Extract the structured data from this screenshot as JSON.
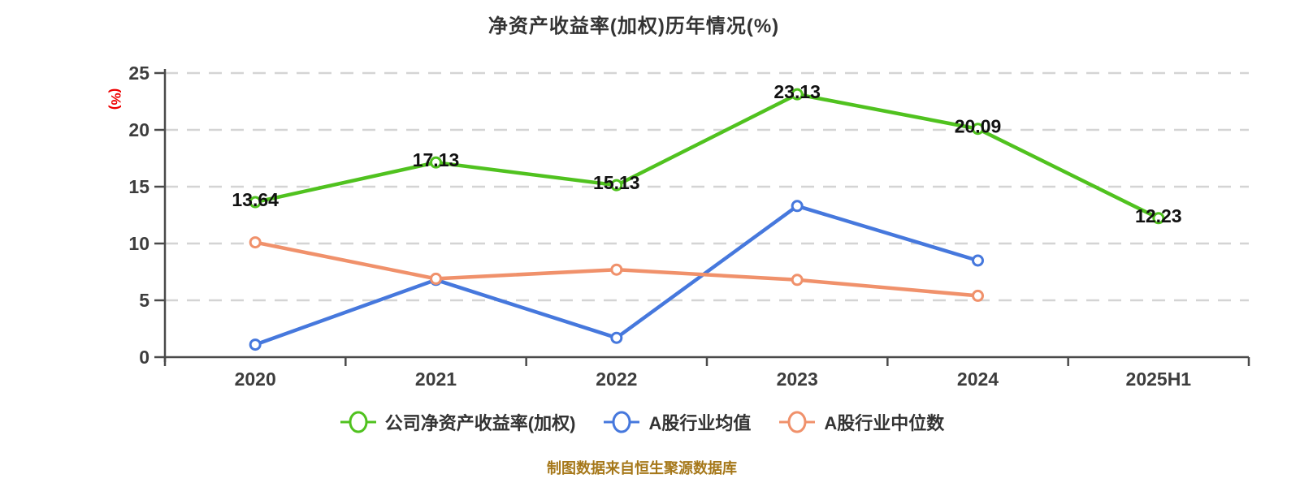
{
  "title": "净资产收益率(加权)历年情况(%)",
  "footer": "制图数据来自恒生聚源数据库",
  "y_axis_unit": "(%)",
  "colors": {
    "company_series": "#50c21f",
    "industry_mean_series": "#4678dd",
    "industry_median_series": "#f0916b",
    "grid": "#d4d4d4",
    "axis": "#4a4a4a",
    "tick_label": "#3d3d3d",
    "data_label": "#111111",
    "title_text": "#333333",
    "legend_text": "#333333",
    "footer_text": "#a6781a",
    "unit_label": "#ee0000",
    "marker_fill": "#ffffff",
    "background": "#ffffff"
  },
  "chart_data": {
    "type": "line",
    "title": "净资产收益率(加权)历年情况(%)",
    "categories": [
      "2020",
      "2021",
      "2022",
      "2023",
      "2024",
      "2025H1"
    ],
    "series": [
      {
        "name": "公司净资产收益率(加权)",
        "color": "#50c21f",
        "values": [
          13.64,
          17.13,
          15.13,
          23.13,
          20.09,
          12.23
        ],
        "show_labels": true
      },
      {
        "name": "A股行业均值",
        "color": "#4678dd",
        "values": [
          1.1,
          6.8,
          1.7,
          13.3,
          8.5,
          null
        ],
        "show_labels": false
      },
      {
        "name": "A股行业中位数",
        "color": "#f0916b",
        "values": [
          10.1,
          6.9,
          7.7,
          6.8,
          5.4,
          null
        ],
        "show_labels": false
      }
    ],
    "ylabel": "(%)",
    "ylim": [
      0,
      25
    ],
    "y_ticks": [
      0,
      5,
      10,
      15,
      20,
      25
    ],
    "grid": "horizontal-dashed",
    "legend_position": "bottom",
    "source_note": "制图数据来自恒生聚源数据库"
  }
}
